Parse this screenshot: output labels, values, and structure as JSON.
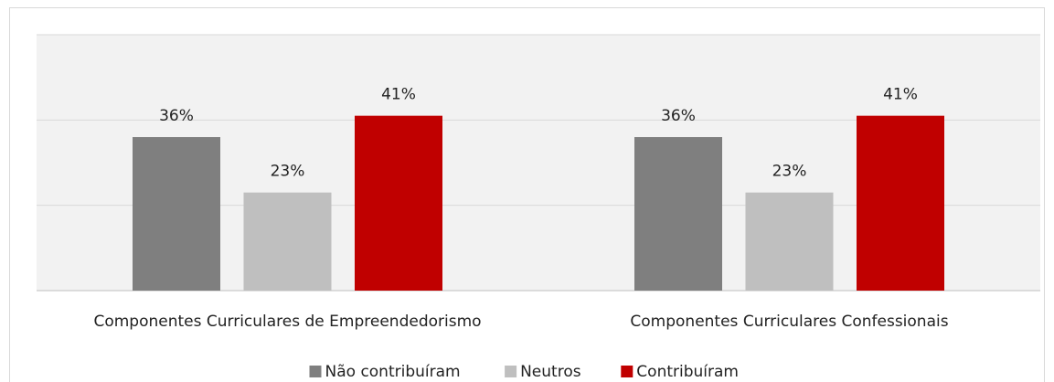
{
  "chart_data": {
    "type": "bar",
    "categories": [
      "Componentes Curriculares de Empreendedorismo",
      "Componentes Curriculares Confessionais"
    ],
    "series": [
      {
        "name": "Não contribuíram",
        "color": "#7f7f7f",
        "values": [
          36,
          36
        ],
        "value_labels": [
          "36%",
          "36%"
        ]
      },
      {
        "name": "Neutros",
        "color": "#bfbfbf",
        "values": [
          23,
          23
        ],
        "value_labels": [
          "23%",
          "23%"
        ]
      },
      {
        "name": "Contribuíram",
        "color": "#c00000",
        "values": [
          41,
          41
        ],
        "value_labels": [
          "41%",
          "41%"
        ]
      }
    ],
    "ylim": [
      0,
      60
    ],
    "yticks": [
      0,
      20,
      40,
      60
    ],
    "grid": true,
    "legend": "bottom"
  }
}
